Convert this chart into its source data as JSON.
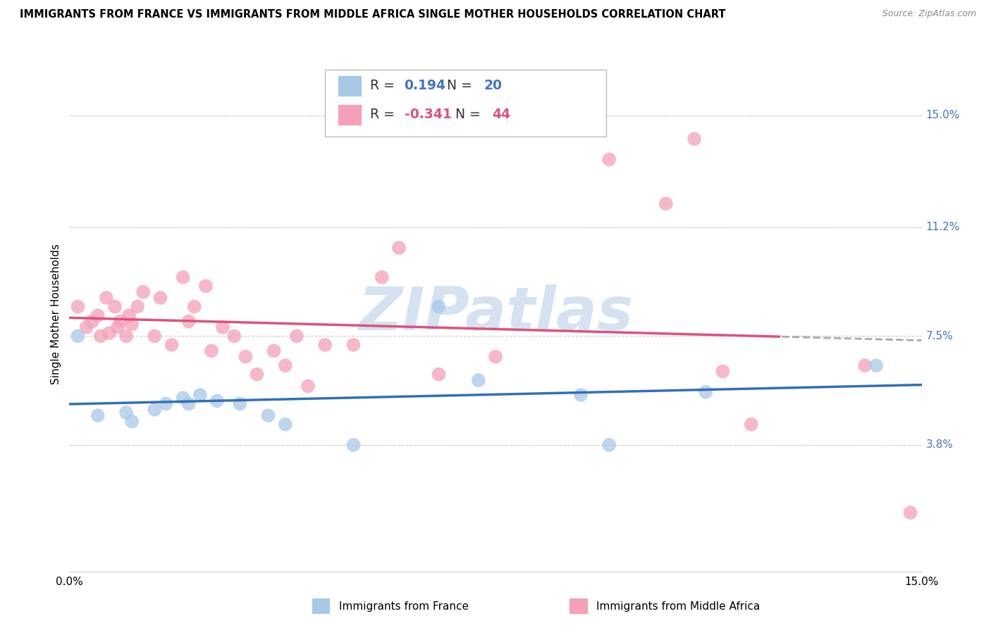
{
  "title": "IMMIGRANTS FROM FRANCE VS IMMIGRANTS FROM MIDDLE AFRICA SINGLE MOTHER HOUSEHOLDS CORRELATION CHART",
  "source": "Source: ZipAtlas.com",
  "ylabel": "Single Mother Households",
  "ytick_values": [
    3.8,
    7.5,
    11.2,
    15.0
  ],
  "xlim": [
    0.0,
    15.0
  ],
  "ylim": [
    -0.5,
    17.0
  ],
  "legend_r_france": "0.194",
  "legend_n_france": "20",
  "legend_r_africa": "-0.341",
  "legend_n_africa": "44",
  "color_france": "#a8c8e8",
  "color_africa": "#f4a0b8",
  "color_france_line": "#3070b8",
  "color_africa_line": "#e0507a",
  "color_dashed": "#aaaaaa",
  "watermark_color": "#d0dff0",
  "france_x": [
    0.15,
    0.5,
    1.0,
    1.1,
    1.5,
    1.7,
    2.0,
    2.1,
    2.3,
    2.6,
    3.0,
    3.5,
    3.8,
    5.0,
    6.5,
    7.2,
    9.0,
    9.5,
    11.2,
    14.2
  ],
  "france_y": [
    7.5,
    4.8,
    4.9,
    4.6,
    5.0,
    5.2,
    5.4,
    5.2,
    5.5,
    5.3,
    5.2,
    4.8,
    4.5,
    3.8,
    8.5,
    6.0,
    5.5,
    3.8,
    5.6,
    6.5
  ],
  "africa_x": [
    0.15,
    0.3,
    0.4,
    0.5,
    0.55,
    0.65,
    0.7,
    0.8,
    0.85,
    0.9,
    1.0,
    1.05,
    1.1,
    1.2,
    1.3,
    1.5,
    1.6,
    1.8,
    2.0,
    2.1,
    2.2,
    2.4,
    2.5,
    2.7,
    2.9,
    3.1,
    3.3,
    3.6,
    3.8,
    4.0,
    4.2,
    4.5,
    5.0,
    5.5,
    5.8,
    9.5,
    6.5,
    7.5,
    11.0,
    10.5,
    11.5,
    12.0,
    14.0,
    14.8
  ],
  "africa_y": [
    8.5,
    7.8,
    8.0,
    8.2,
    7.5,
    8.8,
    7.6,
    8.5,
    7.8,
    8.0,
    7.5,
    8.2,
    7.9,
    8.5,
    9.0,
    7.5,
    8.8,
    7.2,
    9.5,
    8.0,
    8.5,
    9.2,
    7.0,
    7.8,
    7.5,
    6.8,
    6.2,
    7.0,
    6.5,
    7.5,
    5.8,
    7.2,
    7.2,
    9.5,
    10.5,
    13.5,
    6.2,
    6.8,
    14.2,
    12.0,
    6.3,
    4.5,
    6.5,
    1.5
  ],
  "africa_solid_max_x": 12.5,
  "bottom_labels": [
    "Immigrants from France",
    "Immigrants from Middle Africa"
  ]
}
